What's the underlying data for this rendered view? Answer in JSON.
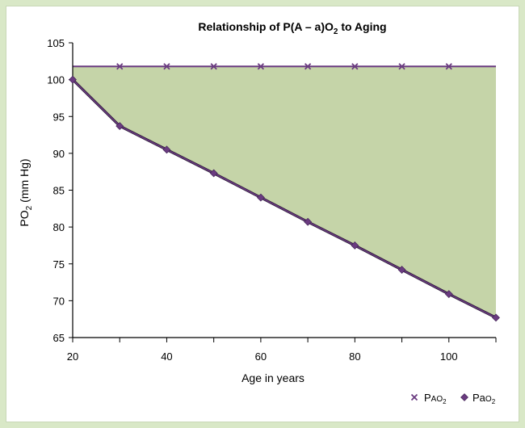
{
  "colors": {
    "frame": "#d9e8c7",
    "fill": "#c5d4a8",
    "series": "#6a3b80",
    "axis": "#000000"
  },
  "chart_data": {
    "type": "line",
    "title": "Relationship of P(A – a)O2 to Aging",
    "title_parts": {
      "main": "Relationship of P(A – a)O",
      "sub": "2",
      "tail": " to Aging"
    },
    "xlabel": "Age in years",
    "ylabel_parts": {
      "main": "PO",
      "sub": "2",
      "tail": " (mm Hg)"
    },
    "xlim": [
      20,
      110
    ],
    "ylim": [
      65,
      105
    ],
    "x_ticks": [
      20,
      40,
      60,
      80,
      100
    ],
    "y_ticks": [
      65,
      70,
      75,
      80,
      85,
      90,
      95,
      100,
      105
    ],
    "grid": false,
    "legend_position": "bottom-right",
    "shaded_gap": true,
    "series": [
      {
        "name": "PAO2",
        "legend_parts": {
          "main": "P",
          "small": "AO",
          "sub": "2"
        },
        "marker": "x",
        "line_x": [
          20,
          110
        ],
        "line_y": [
          101.8,
          101.8
        ],
        "marker_x": [
          30,
          40,
          50,
          60,
          70,
          80,
          90,
          100
        ],
        "marker_y": [
          101.8,
          101.8,
          101.8,
          101.8,
          101.8,
          101.8,
          101.8,
          101.8
        ]
      },
      {
        "name": "PaO2",
        "legend_parts": {
          "main": "Pa",
          "small": "O",
          "sub": "2"
        },
        "marker": "diamond",
        "x": [
          20,
          30,
          40,
          50,
          60,
          70,
          80,
          90,
          100,
          110
        ],
        "y": [
          100,
          93.7,
          90.5,
          87.3,
          84.0,
          80.7,
          77.5,
          74.2,
          70.9,
          67.7
        ]
      }
    ]
  }
}
